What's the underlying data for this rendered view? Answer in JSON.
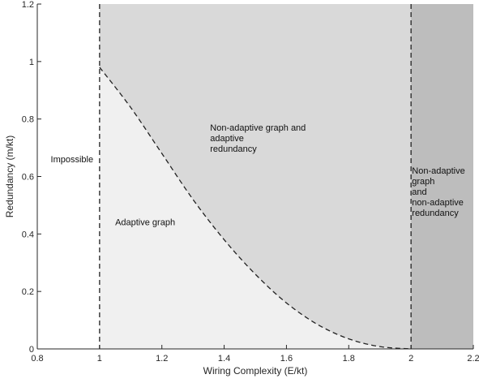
{
  "chart_data": {
    "type": "area",
    "xlabel": "Wiring Complexity (E/kt)",
    "ylabel": "Redundancy (m/kt)",
    "xlim": [
      0.8,
      2.2
    ],
    "ylim": [
      0,
      1.2
    ],
    "xticks": [
      0.8,
      1,
      1.2,
      1.4,
      1.6,
      1.8,
      2,
      2.2
    ],
    "yticks": [
      0,
      0.2,
      0.4,
      0.6,
      0.8,
      1,
      1.2
    ],
    "xtick_labels": [
      "0.8",
      "1",
      "1.2",
      "1.4",
      "1.6",
      "1.8",
      "2",
      "2.2"
    ],
    "ytick_labels": [
      "0",
      "0.2",
      "0.4",
      "0.6",
      "0.8",
      "1",
      "1.2"
    ],
    "grid": false,
    "boundaries": [
      {
        "type": "vertical",
        "x": 1
      },
      {
        "type": "vertical",
        "x": 2
      },
      {
        "type": "curve",
        "x": [
          1.0,
          1.1,
          1.2,
          1.3,
          1.4,
          1.5,
          1.6,
          1.7,
          1.8,
          1.9,
          2.0
        ],
        "y": [
          0.98,
          0.84,
          0.68,
          0.52,
          0.38,
          0.26,
          0.16,
          0.085,
          0.035,
          0.008,
          0.0
        ]
      }
    ],
    "regions": [
      {
        "name": "Impossible",
        "x_range": [
          0.8,
          1.0
        ],
        "color": "#ffffff"
      },
      {
        "name": "Adaptive graph",
        "x_range": [
          1.0,
          2.0
        ],
        "below_curve": true,
        "color": "#f0f0f0"
      },
      {
        "name": "Non-adaptive graph and adaptive redundancy",
        "x_range": [
          1.0,
          2.0
        ],
        "above_curve": true,
        "color": "#d9d9d9"
      },
      {
        "name": "Non-adaptive graph and non-adaptive redundancy",
        "x_range": [
          2.0,
          2.2
        ],
        "color": "#bdbdbd"
      }
    ],
    "annotations": [
      {
        "lines": [
          "Impossible"
        ],
        "x": 0.843,
        "y": 0.65
      },
      {
        "lines": [
          "Adaptive graph"
        ],
        "x": 1.05,
        "y": 0.43
      },
      {
        "lines": [
          "Non-adaptive graph and",
          "adaptive",
          "redundancy"
        ],
        "x": 1.355,
        "y": 0.76
      },
      {
        "lines": [
          "Non-adaptive",
          "graph",
          "and",
          "non-adaptive",
          "redundancy"
        ],
        "x": 2.003,
        "y": 0.61
      }
    ]
  }
}
